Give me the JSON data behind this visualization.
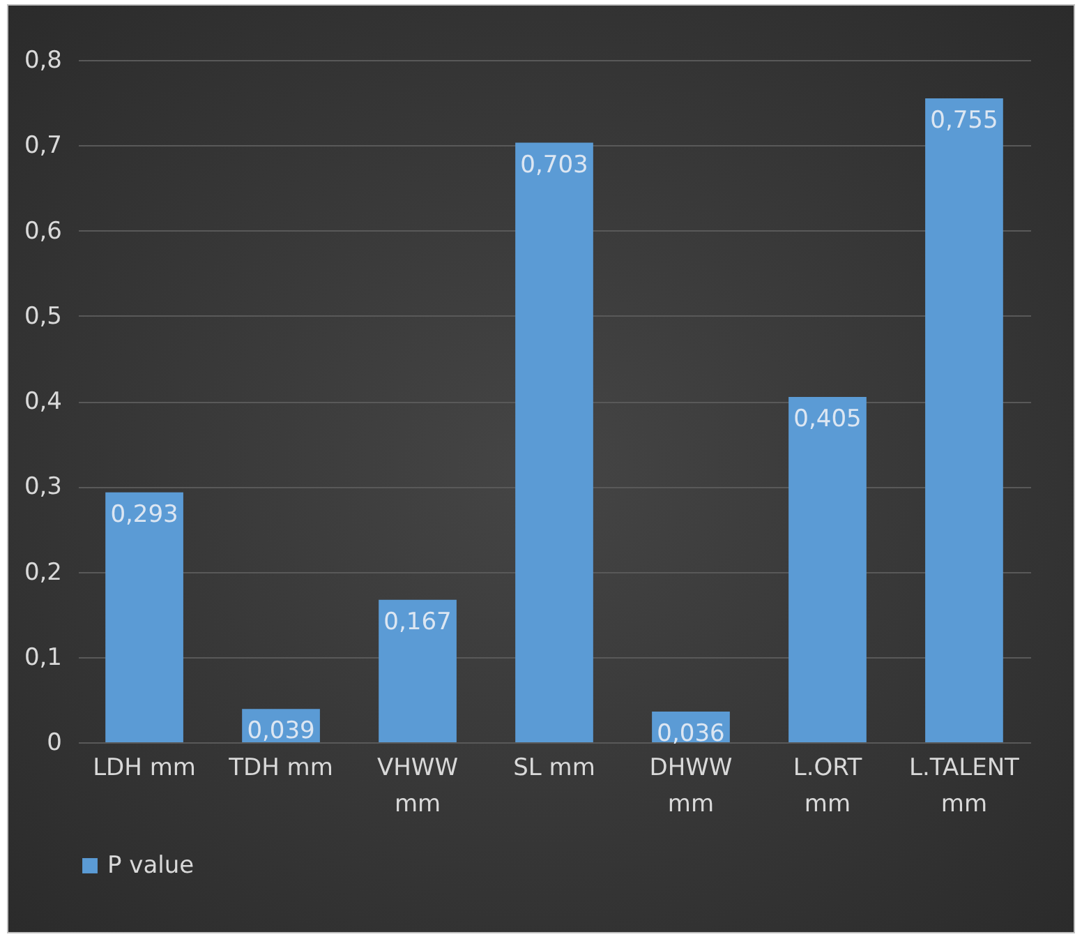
{
  "chart_data": {
    "type": "bar",
    "categories": [
      "LDH mm",
      "TDH mm",
      "VHWW mm",
      "SL mm",
      "DHWW mm",
      "L.ORT mm",
      "L.TALENT mm"
    ],
    "series": [
      {
        "name": "P value",
        "color": "#5b9bd5",
        "values": [
          0.293,
          0.039,
          0.167,
          0.703,
          0.036,
          0.405,
          0.755
        ],
        "value_labels": [
          "0,293",
          "0,039",
          "0,167",
          "0,703",
          "0,036",
          "0,405",
          "0,755"
        ]
      }
    ],
    "ylim": [
      0,
      0.8
    ],
    "yticks": [
      0,
      {
        "value": 0.1,
        "label": "0,1"
      },
      {
        "value": 0.2,
        "label": "0,2"
      },
      {
        "value": 0.3,
        "label": "0,3"
      },
      {
        "value": 0.4,
        "label": "0,4"
      },
      {
        "value": 0.5,
        "label": "0,5"
      },
      {
        "value": 0.6,
        "label": "0,6"
      },
      {
        "value": 0.7,
        "label": "0,7"
      },
      {
        "value": 0.8,
        "label": "0,8"
      }
    ],
    "grid": "y",
    "legend": "bottom"
  }
}
